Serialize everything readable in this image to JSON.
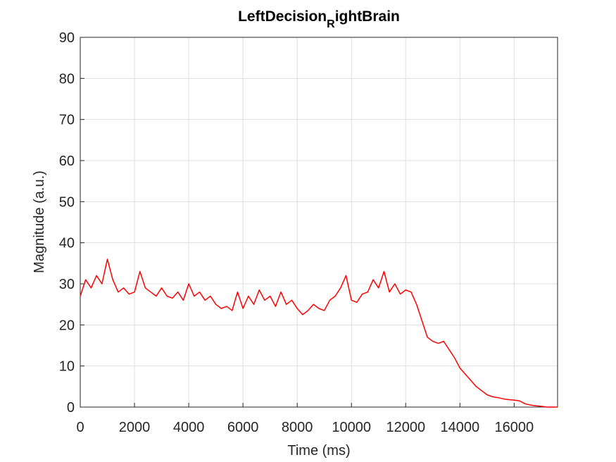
{
  "chart_data": {
    "type": "line",
    "title": [
      "LeftDecision",
      "R",
      "ightBrain"
    ],
    "xlabel": "Time (ms)",
    "ylabel": "Magnitude (a.u.)",
    "xlim": [
      0,
      17600
    ],
    "ylim": [
      0,
      90
    ],
    "xticks": [
      0,
      2000,
      4000,
      6000,
      8000,
      10000,
      12000,
      14000,
      16000
    ],
    "yticks": [
      0,
      10,
      20,
      30,
      40,
      50,
      60,
      70,
      80,
      90
    ],
    "grid": true,
    "x": [
      0,
      200,
      400,
      600,
      800,
      1000,
      1200,
      1400,
      1600,
      1800,
      2000,
      2200,
      2400,
      2600,
      2800,
      3000,
      3200,
      3400,
      3600,
      3800,
      4000,
      4200,
      4400,
      4600,
      4800,
      5000,
      5200,
      5400,
      5600,
      5800,
      6000,
      6200,
      6400,
      6600,
      6800,
      7000,
      7200,
      7400,
      7600,
      7800,
      8000,
      8200,
      8400,
      8600,
      8800,
      9000,
      9200,
      9400,
      9600,
      9800,
      10000,
      10200,
      10400,
      10600,
      10800,
      11000,
      11200,
      11400,
      11600,
      11800,
      12000,
      12200,
      12400,
      12600,
      12800,
      13000,
      13200,
      13400,
      13600,
      13800,
      14000,
      14200,
      14400,
      14600,
      14800,
      15000,
      15200,
      15400,
      15600,
      15800,
      16000,
      16200,
      16400,
      16600,
      16800,
      17000,
      17200,
      17400,
      17600
    ],
    "series": [
      {
        "color": "#ff0000",
        "values": [
          27,
          31,
          29,
          32,
          30,
          36,
          31,
          28,
          29,
          27.5,
          28,
          33,
          29,
          28,
          27,
          29,
          27,
          26.5,
          28,
          26,
          30,
          27,
          28,
          26,
          27,
          25,
          24,
          24.5,
          23.5,
          28,
          24,
          27,
          25,
          28.5,
          26,
          27,
          24.5,
          28,
          25,
          26,
          24,
          22.5,
          23.5,
          25,
          24,
          23.5,
          26,
          27,
          29,
          32,
          26,
          25.5,
          27.5,
          28,
          31,
          29,
          33,
          28,
          30,
          27.5,
          28.5,
          28,
          25,
          21,
          17,
          16,
          15.5,
          16,
          14,
          12,
          9.5,
          8,
          6.5,
          5,
          4,
          3,
          2.5,
          2.3,
          2,
          1.8,
          1.7,
          1.5,
          0.8,
          0.5,
          0.3,
          0.2,
          0,
          0,
          0
        ]
      }
    ]
  }
}
